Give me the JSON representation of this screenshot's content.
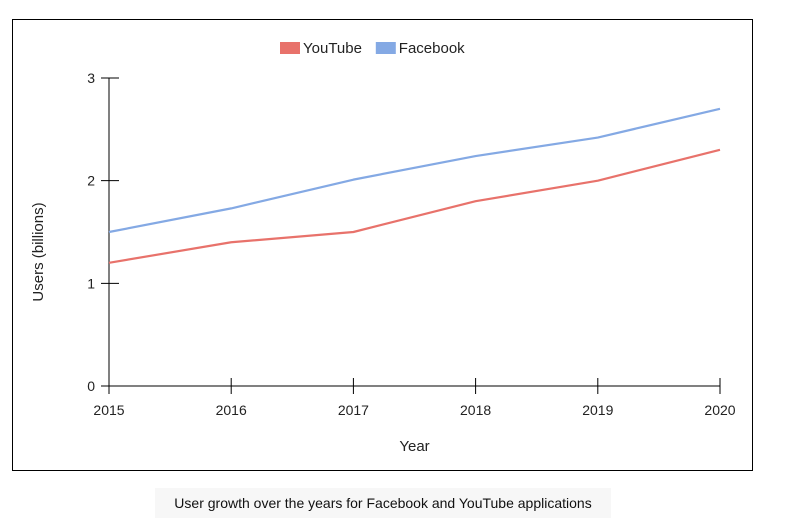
{
  "caption": "User growth over the years for Facebook and YouTube applications",
  "chart_data": {
    "type": "line",
    "title": "",
    "xlabel": "Year",
    "ylabel": "Users (billions)",
    "x": [
      "2015",
      "2016",
      "2017",
      "2018",
      "2019",
      "2020"
    ],
    "ylim": [
      0,
      3
    ],
    "yticks": [
      "0",
      "1",
      "2",
      "3"
    ],
    "grid": false,
    "legend_position": "top-center",
    "series": [
      {
        "name": "YouTube",
        "color": "#e8726b",
        "values": [
          1.2,
          1.4,
          1.5,
          1.8,
          2.0,
          2.3
        ]
      },
      {
        "name": "Facebook",
        "color": "#84a9e4",
        "values": [
          1.5,
          1.73,
          2.01,
          2.24,
          2.42,
          2.7
        ]
      }
    ]
  }
}
